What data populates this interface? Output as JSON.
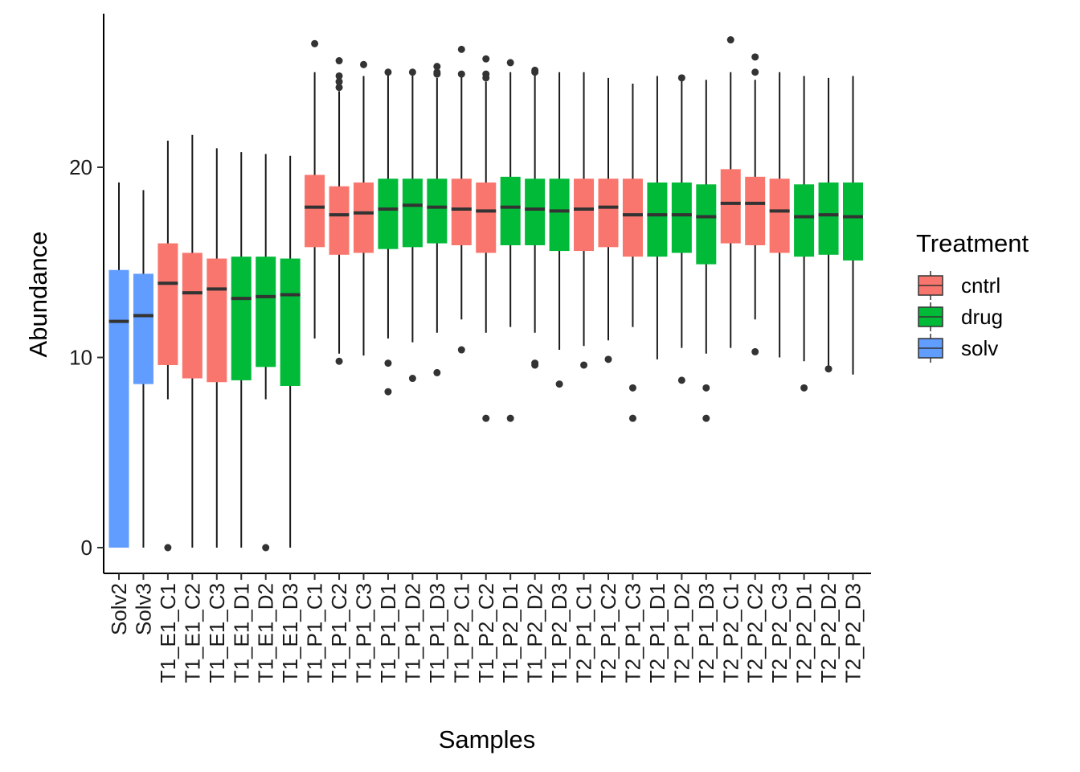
{
  "chart_data": {
    "type": "boxplot",
    "title": "",
    "xlabel": "Samples",
    "ylabel": "Abundance",
    "ylim": [
      -1.2,
      28
    ],
    "yticks": [
      0,
      10,
      20
    ],
    "grid": false,
    "legend": {
      "title": "Treatment",
      "position": "right",
      "entries": [
        {
          "label": "cntrl",
          "color": "#F8766D"
        },
        {
          "label": "drug",
          "color": "#00BA38"
        },
        {
          "label": "solv",
          "color": "#619CFF"
        }
      ]
    },
    "colors": {
      "cntrl": "#F8766D",
      "drug": "#00BA38",
      "solv": "#619CFF",
      "median": "#333333",
      "whisker": "#1a1a1a",
      "outlier": "#333333"
    },
    "categories": [
      "Solv2",
      "Solv3",
      "T1_E1_C1",
      "T1_E1_C2",
      "T1_E1_C3",
      "T1_E1_D1",
      "T1_E1_D2",
      "T1_E1_D3",
      "T1_P1_C1",
      "T1_P1_C2",
      "T1_P1_C3",
      "T1_P1_D1",
      "T1_P1_D2",
      "T1_P1_D3",
      "T1_P2_C1",
      "T1_P2_C2",
      "T1_P2_D1",
      "T1_P2_D2",
      "T1_P2_D3",
      "T2_P1_C1",
      "T2_P1_C2",
      "T2_P1_C3",
      "T2_P1_D1",
      "T2_P1_D2",
      "T2_P1_D3",
      "T2_P2_C1",
      "T2_P2_C2",
      "T2_P2_C3",
      "T2_P2_D1",
      "T2_P2_D2",
      "T2_P2_D3"
    ],
    "boxes": [
      {
        "group": "solv",
        "whisker_low": 0,
        "q1": 0,
        "median": 11.9,
        "q3": 14.6,
        "whisker_high": 19.2,
        "outliers": []
      },
      {
        "group": "solv",
        "whisker_low": 0,
        "q1": 8.6,
        "median": 12.2,
        "q3": 14.4,
        "whisker_high": 18.8,
        "outliers": []
      },
      {
        "group": "cntrl",
        "whisker_low": 7.8,
        "q1": 9.6,
        "median": 13.9,
        "q3": 16.0,
        "whisker_high": 21.4,
        "outliers": [
          0
        ]
      },
      {
        "group": "cntrl",
        "whisker_low": 0,
        "q1": 8.9,
        "median": 13.4,
        "q3": 15.5,
        "whisker_high": 21.7,
        "outliers": []
      },
      {
        "group": "cntrl",
        "whisker_low": 0,
        "q1": 8.7,
        "median": 13.6,
        "q3": 15.2,
        "whisker_high": 21.0,
        "outliers": []
      },
      {
        "group": "drug",
        "whisker_low": 0,
        "q1": 8.8,
        "median": 13.1,
        "q3": 15.3,
        "whisker_high": 20.8,
        "outliers": []
      },
      {
        "group": "drug",
        "whisker_low": 7.8,
        "q1": 9.5,
        "median": 13.2,
        "q3": 15.3,
        "whisker_high": 20.7,
        "outliers": [
          0
        ]
      },
      {
        "group": "drug",
        "whisker_low": 0,
        "q1": 8.5,
        "median": 13.3,
        "q3": 15.2,
        "whisker_high": 20.6,
        "outliers": []
      },
      {
        "group": "cntrl",
        "whisker_low": 11.0,
        "q1": 15.8,
        "median": 17.9,
        "q3": 19.6,
        "whisker_high": 25.0,
        "outliers": [
          26.5
        ]
      },
      {
        "group": "cntrl",
        "whisker_low": 10.2,
        "q1": 15.4,
        "median": 17.5,
        "q3": 19.0,
        "whisker_high": 24.0,
        "outliers": [
          9.8,
          24.2,
          24.5,
          24.8,
          25.6
        ]
      },
      {
        "group": "cntrl",
        "whisker_low": 10.1,
        "q1": 15.5,
        "median": 17.6,
        "q3": 19.2,
        "whisker_high": 24.8,
        "outliers": [
          25.4
        ]
      },
      {
        "group": "drug",
        "whisker_low": 11.0,
        "q1": 15.7,
        "median": 17.8,
        "q3": 19.4,
        "whisker_high": 25.0,
        "outliers": [
          8.2,
          9.7,
          25.0
        ]
      },
      {
        "group": "drug",
        "whisker_low": 10.8,
        "q1": 15.8,
        "median": 18.0,
        "q3": 19.4,
        "whisker_high": 25.0,
        "outliers": [
          8.9,
          25.0
        ]
      },
      {
        "group": "drug",
        "whisker_low": 11.3,
        "q1": 16.0,
        "median": 17.9,
        "q3": 19.4,
        "whisker_high": 24.7,
        "outliers": [
          9.2,
          24.9,
          25.0,
          25.3
        ]
      },
      {
        "group": "cntrl",
        "whisker_low": 12.0,
        "q1": 15.9,
        "median": 17.8,
        "q3": 19.4,
        "whisker_high": 24.8,
        "outliers": [
          10.4,
          24.9,
          26.2
        ]
      },
      {
        "group": "cntrl",
        "whisker_low": 11.3,
        "q1": 15.5,
        "median": 17.7,
        "q3": 19.2,
        "whisker_high": 24.5,
        "outliers": [
          6.8,
          24.7,
          24.9,
          25.7
        ]
      },
      {
        "group": "drug",
        "whisker_low": 11.6,
        "q1": 15.9,
        "median": 17.9,
        "q3": 19.5,
        "whisker_high": 25.0,
        "outliers": [
          6.8,
          25.5
        ]
      },
      {
        "group": "drug",
        "whisker_low": 11.3,
        "q1": 15.9,
        "median": 17.8,
        "q3": 19.4,
        "whisker_high": 25.0,
        "outliers": [
          9.6,
          9.7,
          25.0,
          25.1
        ]
      },
      {
        "group": "drug",
        "whisker_low": 10.4,
        "q1": 15.6,
        "median": 17.7,
        "q3": 19.4,
        "whisker_high": 25.0,
        "outliers": [
          8.6
        ]
      },
      {
        "group": "cntrl",
        "whisker_low": 10.6,
        "q1": 15.6,
        "median": 17.8,
        "q3": 19.4,
        "whisker_high": 25.0,
        "outliers": [
          9.6
        ]
      },
      {
        "group": "cntrl",
        "whisker_low": 10.9,
        "q1": 15.8,
        "median": 17.9,
        "q3": 19.4,
        "whisker_high": 24.7,
        "outliers": [
          9.9
        ]
      },
      {
        "group": "cntrl",
        "whisker_low": 11.6,
        "q1": 15.3,
        "median": 17.5,
        "q3": 19.4,
        "whisker_high": 24.4,
        "outliers": [
          6.8,
          8.4
        ]
      },
      {
        "group": "drug",
        "whisker_low": 9.9,
        "q1": 15.3,
        "median": 17.5,
        "q3": 19.2,
        "whisker_high": 24.8,
        "outliers": []
      },
      {
        "group": "drug",
        "whisker_low": 10.5,
        "q1": 15.5,
        "median": 17.5,
        "q3": 19.2,
        "whisker_high": 24.6,
        "outliers": [
          8.8,
          24.7
        ]
      },
      {
        "group": "drug",
        "whisker_low": 10.2,
        "q1": 14.9,
        "median": 17.4,
        "q3": 19.1,
        "whisker_high": 24.6,
        "outliers": [
          6.8,
          8.4
        ]
      },
      {
        "group": "cntrl",
        "whisker_low": 10.5,
        "q1": 16.0,
        "median": 18.1,
        "q3": 19.9,
        "whisker_high": 25.0,
        "outliers": [
          26.7
        ]
      },
      {
        "group": "cntrl",
        "whisker_low": 12.0,
        "q1": 15.9,
        "median": 18.1,
        "q3": 19.5,
        "whisker_high": 24.6,
        "outliers": [
          10.3,
          25.0,
          25.8
        ]
      },
      {
        "group": "cntrl",
        "whisker_low": 10.0,
        "q1": 15.5,
        "median": 17.7,
        "q3": 19.4,
        "whisker_high": 25.0,
        "outliers": []
      },
      {
        "group": "drug",
        "whisker_low": 9.8,
        "q1": 15.3,
        "median": 17.4,
        "q3": 19.1,
        "whisker_high": 24.8,
        "outliers": [
          8.4
        ]
      },
      {
        "group": "drug",
        "whisker_low": 9.4,
        "q1": 15.4,
        "median": 17.5,
        "q3": 19.2,
        "whisker_high": 24.7,
        "outliers": [
          9.4
        ]
      },
      {
        "group": "drug",
        "whisker_low": 9.1,
        "q1": 15.1,
        "median": 17.4,
        "q3": 19.2,
        "whisker_high": 24.8,
        "outliers": []
      }
    ]
  }
}
